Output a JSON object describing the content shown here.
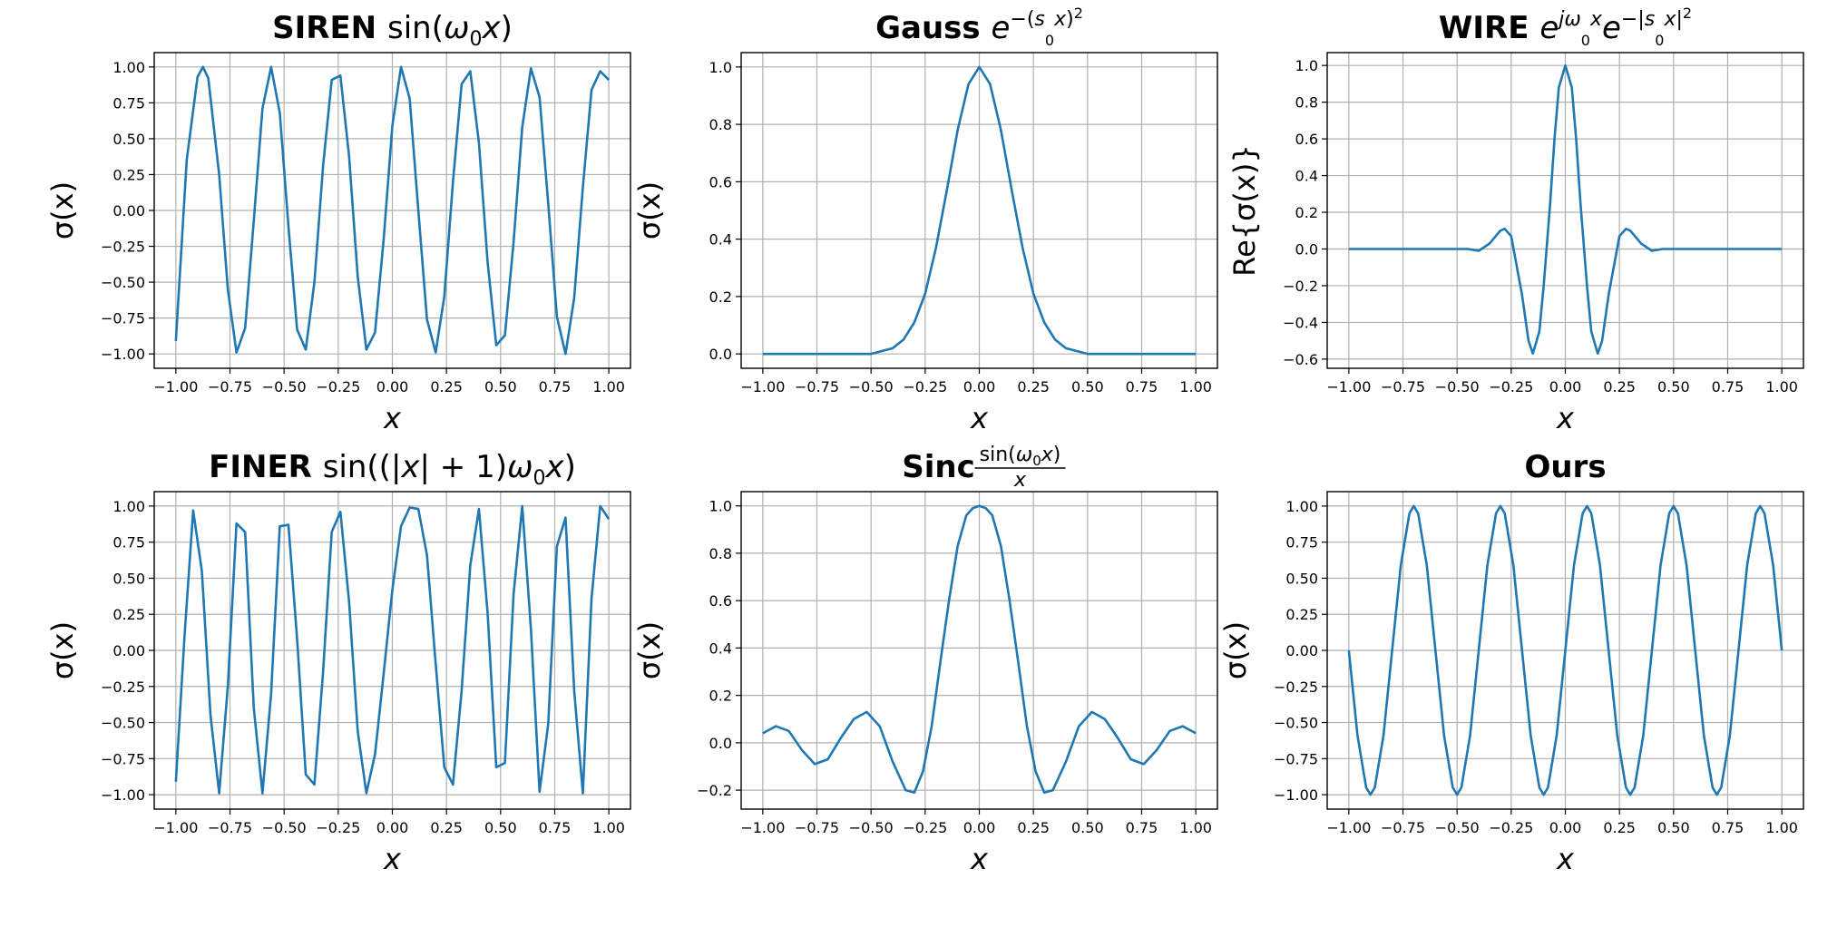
{
  "figure": {
    "background": "#ffffff",
    "line_color": "#1f77b4",
    "grid_color": "#b0b0b0"
  },
  "chart_data": [
    {
      "type": "line",
      "title_bold": "SIREN",
      "title_math": "sin(ω₀x)",
      "xlabel": "x",
      "ylabel": "σ(x)",
      "xlim": [
        -1.1,
        1.1
      ],
      "ylim": [
        -1.1,
        1.1
      ],
      "xticks": [
        -1.0,
        -0.75,
        -0.5,
        -0.25,
        0.0,
        0.25,
        0.5,
        0.75,
        1.0
      ],
      "xtick_labels": [
        "−1.00",
        "−0.75",
        "−0.50",
        "−0.25",
        "0.00",
        "0.25",
        "0.50",
        "0.75",
        "1.00"
      ],
      "yticks": [
        -1.0,
        -0.75,
        -0.5,
        -0.25,
        0.0,
        0.25,
        0.5,
        0.75,
        1.0
      ],
      "ytick_labels": [
        "−1.00",
        "−0.75",
        "−0.50",
        "−0.25",
        "0.00",
        "0.25",
        "0.50",
        "0.75",
        "1.00"
      ],
      "grid": true,
      "series": [
        {
          "x": [
            -1.0,
            -0.95,
            -0.9,
            -0.875,
            -0.85,
            -0.8,
            -0.76,
            -0.72,
            -0.68,
            -0.64,
            -0.6,
            -0.56,
            -0.52,
            -0.48,
            -0.44,
            -0.4,
            -0.36,
            -0.32,
            -0.28,
            -0.24,
            -0.2,
            -0.16,
            -0.12,
            -0.08,
            -0.04,
            0.0,
            0.04,
            0.08,
            0.12,
            0.16,
            0.2,
            0.24,
            0.28,
            0.32,
            0.36,
            0.4,
            0.44,
            0.48,
            0.52,
            0.56,
            0.6,
            0.64,
            0.68,
            0.72,
            0.76,
            0.8,
            0.84,
            0.88,
            0.92,
            0.96,
            1.0
          ],
          "y": [
            -0.91,
            0.35,
            0.93,
            1.0,
            0.92,
            0.25,
            -0.55,
            -0.99,
            -0.82,
            -0.07,
            0.71,
            1.0,
            0.68,
            -0.11,
            -0.83,
            -0.97,
            -0.5,
            0.31,
            0.91,
            0.94,
            0.38,
            -0.46,
            -0.97,
            -0.85,
            -0.2,
            0.59,
            1.0,
            0.78,
            0.0,
            -0.76,
            -0.99,
            -0.6,
            0.2,
            0.88,
            0.97,
            0.47,
            -0.36,
            -0.94,
            -0.87,
            -0.22,
            0.58,
            0.99,
            0.79,
            0.05,
            -0.74,
            -1.0,
            -0.61,
            0.16,
            0.84,
            0.97,
            0.91
          ]
        }
      ]
    },
    {
      "type": "line",
      "title_bold": "Gauss",
      "title_math": "e^−(s₀x)²",
      "xlabel": "x",
      "ylabel": "σ(x)",
      "xlim": [
        -1.1,
        1.1
      ],
      "ylim": [
        -0.05,
        1.05
      ],
      "xticks": [
        -1.0,
        -0.75,
        -0.5,
        -0.25,
        0.0,
        0.25,
        0.5,
        0.75,
        1.0
      ],
      "xtick_labels": [
        "−1.00",
        "−0.75",
        "−0.50",
        "−0.25",
        "0.00",
        "0.25",
        "0.50",
        "0.75",
        "1.00"
      ],
      "yticks": [
        0.0,
        0.2,
        0.4,
        0.6,
        0.8,
        1.0
      ],
      "ytick_labels": [
        "0.0",
        "0.2",
        "0.4",
        "0.6",
        "0.8",
        "1.0"
      ],
      "grid": true,
      "series": [
        {
          "x": [
            -1.0,
            -0.8,
            -0.6,
            -0.5,
            -0.45,
            -0.4,
            -0.35,
            -0.3,
            -0.25,
            -0.2,
            -0.15,
            -0.1,
            -0.05,
            0.0,
            0.05,
            0.1,
            0.15,
            0.2,
            0.25,
            0.3,
            0.35,
            0.4,
            0.45,
            0.5,
            0.6,
            0.8,
            1.0
          ],
          "y": [
            0.0,
            0.0,
            0.0,
            0.0,
            0.01,
            0.02,
            0.05,
            0.11,
            0.21,
            0.37,
            0.57,
            0.78,
            0.94,
            1.0,
            0.94,
            0.78,
            0.57,
            0.37,
            0.21,
            0.11,
            0.05,
            0.02,
            0.01,
            0.0,
            0.0,
            0.0,
            0.0
          ]
        }
      ]
    },
    {
      "type": "line",
      "title_bold": "WIRE",
      "title_math": "e^jω₀x e^−|s₀x|²",
      "xlabel": "x",
      "ylabel": "Re{σ(x)}",
      "xlim": [
        -1.1,
        1.1
      ],
      "ylim": [
        -0.65,
        1.07
      ],
      "xticks": [
        -1.0,
        -0.75,
        -0.5,
        -0.25,
        0.0,
        0.25,
        0.5,
        0.75,
        1.0
      ],
      "xtick_labels": [
        "−1.00",
        "−0.75",
        "−0.50",
        "−0.25",
        "0.00",
        "0.25",
        "0.50",
        "0.75",
        "1.00"
      ],
      "yticks": [
        -0.6,
        -0.4,
        -0.2,
        0.0,
        0.2,
        0.4,
        0.6,
        0.8,
        1.0
      ],
      "ytick_labels": [
        "−0.6",
        "−0.4",
        "−0.2",
        "0.0",
        "0.2",
        "0.4",
        "0.6",
        "0.8",
        "1.0"
      ],
      "grid": true,
      "series": [
        {
          "x": [
            -1.0,
            -0.6,
            -0.45,
            -0.4,
            -0.35,
            -0.3,
            -0.28,
            -0.25,
            -0.2,
            -0.17,
            -0.15,
            -0.12,
            -0.1,
            -0.07,
            -0.05,
            -0.03,
            0.0,
            0.03,
            0.05,
            0.07,
            0.1,
            0.12,
            0.15,
            0.17,
            0.2,
            0.25,
            0.28,
            0.3,
            0.35,
            0.4,
            0.45,
            0.6,
            1.0
          ],
          "y": [
            0.0,
            0.0,
            0.0,
            -0.01,
            0.03,
            0.1,
            0.11,
            0.07,
            -0.25,
            -0.5,
            -0.57,
            -0.45,
            -0.2,
            0.25,
            0.6,
            0.88,
            1.0,
            0.88,
            0.6,
            0.25,
            -0.2,
            -0.45,
            -0.57,
            -0.5,
            -0.25,
            0.07,
            0.11,
            0.1,
            0.03,
            -0.01,
            0.0,
            0.0,
            0.0
          ]
        }
      ]
    },
    {
      "type": "line",
      "title_bold": "FINER",
      "title_math": "sin((|x|+1)ω₀x)",
      "xlabel": "x",
      "ylabel": "σ(x)",
      "xlim": [
        -1.1,
        1.1
      ],
      "ylim": [
        -1.1,
        1.1
      ],
      "xticks": [
        -1.0,
        -0.75,
        -0.5,
        -0.25,
        0.0,
        0.25,
        0.5,
        0.75,
        1.0
      ],
      "xtick_labels": [
        "−1.00",
        "−0.75",
        "−0.50",
        "−0.25",
        "0.00",
        "0.25",
        "0.50",
        "0.75",
        "1.00"
      ],
      "yticks": [
        -1.0,
        -0.75,
        -0.5,
        -0.25,
        0.0,
        0.25,
        0.5,
        0.75,
        1.0
      ],
      "ytick_labels": [
        "−1.00",
        "−0.75",
        "−0.50",
        "−0.25",
        "0.00",
        "0.25",
        "0.50",
        "0.75",
        "1.00"
      ],
      "grid": true,
      "series": [
        {
          "x": [
            -1.0,
            -0.96,
            -0.92,
            -0.88,
            -0.84,
            -0.8,
            -0.76,
            -0.72,
            -0.68,
            -0.64,
            -0.6,
            -0.56,
            -0.52,
            -0.48,
            -0.44,
            -0.4,
            -0.36,
            -0.32,
            -0.28,
            -0.24,
            -0.2,
            -0.16,
            -0.12,
            -0.08,
            -0.04,
            0.0,
            0.04,
            0.08,
            0.12,
            0.16,
            0.2,
            0.24,
            0.28,
            0.32,
            0.36,
            0.4,
            0.44,
            0.48,
            0.52,
            0.56,
            0.6,
            0.64,
            0.68,
            0.72,
            0.76,
            0.8,
            0.84,
            0.88,
            0.92,
            0.96,
            1.0
          ],
          "y": [
            -0.91,
            0.1,
            0.97,
            0.55,
            -0.45,
            -0.99,
            -0.25,
            0.88,
            0.82,
            -0.4,
            -0.99,
            -0.3,
            0.86,
            0.87,
            0.08,
            -0.86,
            -0.93,
            -0.15,
            0.82,
            0.96,
            0.34,
            -0.56,
            -0.99,
            -0.72,
            -0.16,
            0.42,
            0.86,
            0.99,
            0.98,
            0.66,
            -0.09,
            -0.81,
            -0.93,
            -0.28,
            0.59,
            0.98,
            0.26,
            -0.81,
            -0.78,
            0.39,
            1.0,
            0.15,
            -0.98,
            -0.51,
            0.72,
            0.92,
            -0.28,
            -0.99,
            0.36,
            1.0,
            0.91
          ]
        }
      ]
    },
    {
      "type": "line",
      "title_bold": "Sinc",
      "title_math": "sin(ω₀x)/x",
      "xlabel": "x",
      "ylabel": "σ(x)",
      "xlim": [
        -1.1,
        1.1
      ],
      "ylim": [
        -0.28,
        1.06
      ],
      "xticks": [
        -1.0,
        -0.75,
        -0.5,
        -0.25,
        0.0,
        0.25,
        0.5,
        0.75,
        1.0
      ],
      "xtick_labels": [
        "−1.00",
        "−0.75",
        "−0.50",
        "−0.25",
        "0.00",
        "0.25",
        "0.50",
        "0.75",
        "1.00"
      ],
      "yticks": [
        -0.2,
        0.0,
        0.2,
        0.4,
        0.6,
        0.8,
        1.0
      ],
      "ytick_labels": [
        "−0.2",
        "0.0",
        "0.2",
        "0.4",
        "0.6",
        "0.8",
        "1.0"
      ],
      "grid": true,
      "series": [
        {
          "x": [
            -1.0,
            -0.94,
            -0.88,
            -0.82,
            -0.76,
            -0.7,
            -0.64,
            -0.58,
            -0.52,
            -0.46,
            -0.4,
            -0.34,
            -0.3,
            -0.26,
            -0.22,
            -0.18,
            -0.14,
            -0.1,
            -0.06,
            -0.03,
            0.0,
            0.03,
            0.06,
            0.1,
            0.14,
            0.18,
            0.22,
            0.26,
            0.3,
            0.34,
            0.4,
            0.46,
            0.52,
            0.58,
            0.64,
            0.7,
            0.76,
            0.82,
            0.88,
            0.94,
            1.0
          ],
          "y": [
            0.04,
            0.07,
            0.05,
            -0.03,
            -0.09,
            -0.07,
            0.02,
            0.1,
            0.13,
            0.07,
            -0.08,
            -0.2,
            -0.21,
            -0.12,
            0.07,
            0.34,
            0.6,
            0.83,
            0.96,
            0.99,
            1.0,
            0.99,
            0.96,
            0.83,
            0.6,
            0.34,
            0.07,
            -0.12,
            -0.21,
            -0.2,
            -0.08,
            0.07,
            0.13,
            0.1,
            0.02,
            -0.07,
            -0.09,
            -0.03,
            0.05,
            0.07,
            0.04
          ]
        }
      ]
    },
    {
      "type": "line",
      "title_bold": "Ours",
      "title_math": "",
      "xlabel": "x",
      "ylabel": "σ(x)",
      "xlim": [
        -1.1,
        1.1
      ],
      "ylim": [
        -1.1,
        1.1
      ],
      "xticks": [
        -1.0,
        -0.75,
        -0.5,
        -0.25,
        0.0,
        0.25,
        0.5,
        0.75,
        1.0
      ],
      "xtick_labels": [
        "−1.00",
        "−0.75",
        "−0.50",
        "−0.25",
        "0.00",
        "0.25",
        "0.50",
        "0.75",
        "1.00"
      ],
      "yticks": [
        -1.0,
        -0.75,
        -0.5,
        -0.25,
        0.0,
        0.25,
        0.5,
        0.75,
        1.0
      ],
      "ytick_labels": [
        "−1.00",
        "−0.75",
        "−0.50",
        "−0.25",
        "0.00",
        "0.25",
        "0.50",
        "0.75",
        "1.00"
      ],
      "grid": true,
      "series": [
        {
          "x": [
            -1.0,
            -0.96,
            -0.92,
            -0.9,
            -0.88,
            -0.84,
            -0.8,
            -0.76,
            -0.72,
            -0.7,
            -0.68,
            -0.64,
            -0.6,
            -0.56,
            -0.52,
            -0.5,
            -0.48,
            -0.44,
            -0.4,
            -0.36,
            -0.32,
            -0.3,
            -0.28,
            -0.24,
            -0.2,
            -0.16,
            -0.12,
            -0.1,
            -0.08,
            -0.04,
            0.0,
            0.04,
            0.08,
            0.1,
            0.12,
            0.16,
            0.2,
            0.24,
            0.28,
            0.3,
            0.32,
            0.36,
            0.4,
            0.44,
            0.48,
            0.5,
            0.52,
            0.56,
            0.6,
            0.64,
            0.68,
            0.7,
            0.72,
            0.76,
            0.8,
            0.84,
            0.88,
            0.9,
            0.92,
            0.96,
            1.0
          ],
          "y": [
            0.0,
            -0.59,
            -0.95,
            -1.0,
            -0.95,
            -0.59,
            0.0,
            0.59,
            0.95,
            1.0,
            0.95,
            0.59,
            0.0,
            -0.59,
            -0.95,
            -1.0,
            -0.95,
            -0.59,
            0.0,
            0.59,
            0.95,
            1.0,
            0.95,
            0.59,
            0.0,
            -0.59,
            -0.95,
            -1.0,
            -0.95,
            -0.59,
            0.0,
            0.59,
            0.95,
            1.0,
            0.95,
            0.59,
            0.0,
            -0.59,
            -0.95,
            -1.0,
            -0.95,
            -0.59,
            0.0,
            0.59,
            0.95,
            1.0,
            0.95,
            0.59,
            0.0,
            -0.59,
            -0.95,
            -1.0,
            -0.95,
            -0.59,
            0.0,
            0.59,
            0.95,
            1.0,
            0.95,
            0.59,
            0.0
          ]
        }
      ]
    }
  ]
}
